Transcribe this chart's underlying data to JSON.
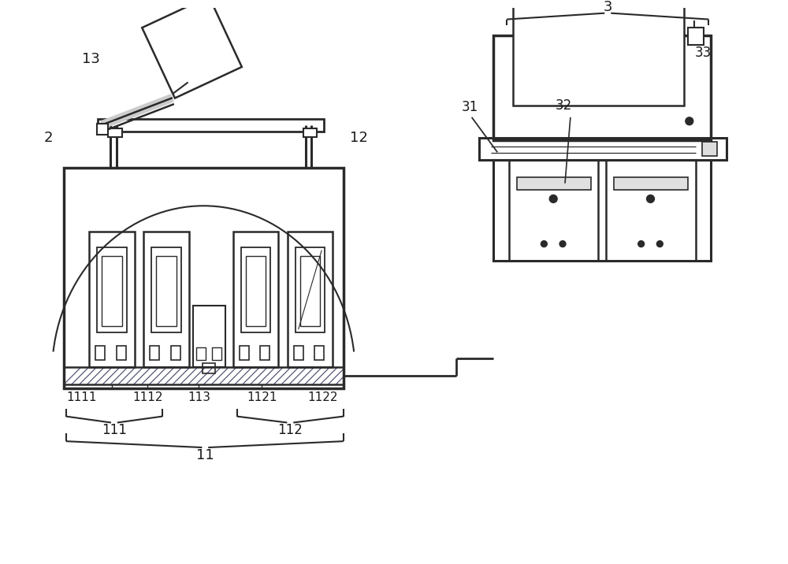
{
  "bg_color": "#ffffff",
  "line_color": "#2a2a2a",
  "fig_width": 10.0,
  "fig_height": 7.16,
  "dpi": 100
}
